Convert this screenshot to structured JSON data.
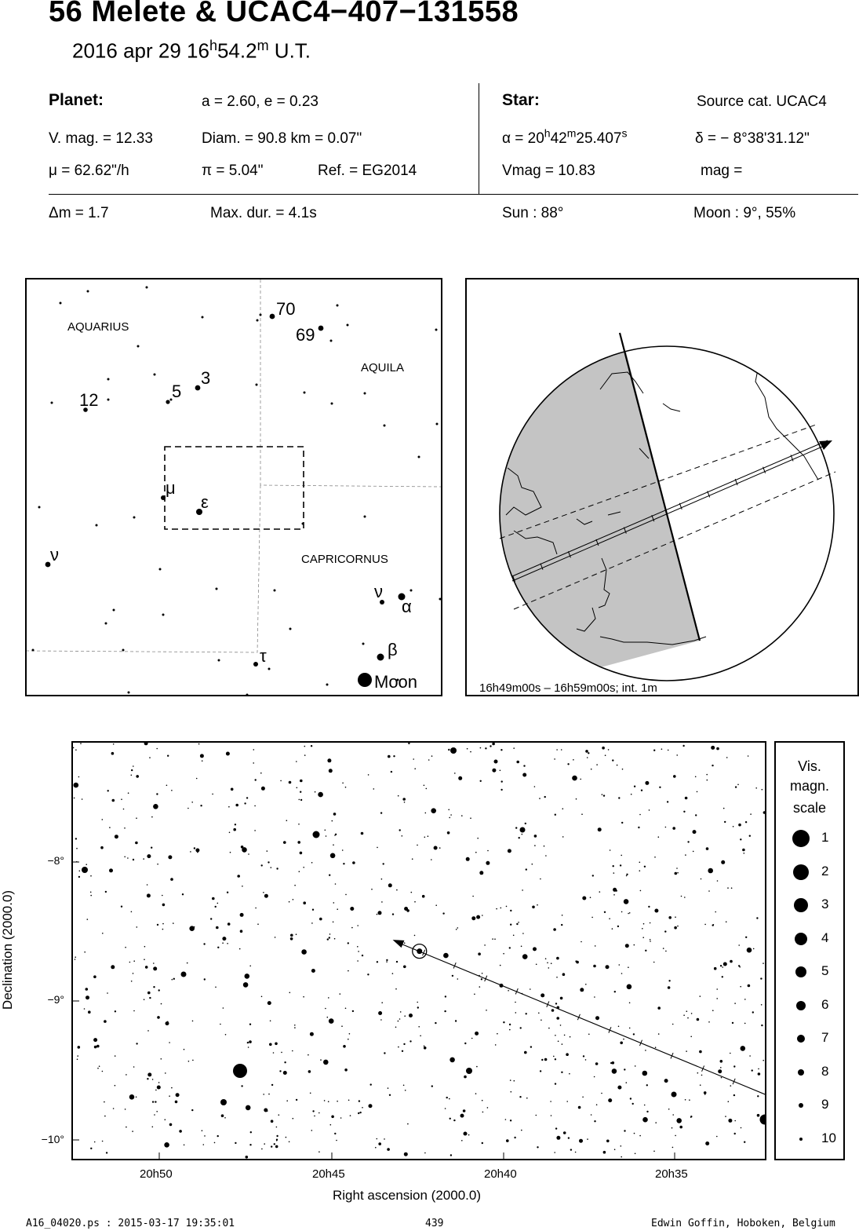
{
  "header": {
    "title": "56 Melete  &  UCAC4−407−131558",
    "date": "2016 apr 29  16",
    "hour_unit": "h",
    "minutes": "54.2",
    "min_unit": "m",
    "ut": " U.T."
  },
  "planet": {
    "heading": "Planet:",
    "orbit": "a = 2.60, e = 0.23",
    "vmag": "V. mag. = 12.33",
    "diam": "Diam. = 90.8 km = 0.07\"",
    "mu": "μ =  62.62\"/h",
    "pi": "π =  5.04\"",
    "ref": "Ref. = EG2014"
  },
  "star": {
    "heading": "Star:",
    "source": "Source cat.  UCAC4",
    "ra_prefix": "α = 20",
    "ra_h": "h",
    "ra_min": "42",
    "ra_m": "m",
    "ra_sec": "25.407",
    "ra_s": "s",
    "dec": "δ = − 8°38'31.12\"",
    "vmag": "Vmag = 10.83",
    "mag": "mag ="
  },
  "event": {
    "dm": "Δm = 1.7",
    "maxdur": "Max. dur. = 4.1s",
    "sun": "Sun :  88°",
    "moon": "Moon :   9°, 55%"
  },
  "finder": {
    "labels": {
      "aquarius": "AQUARIUS",
      "aquila": "AQUILA",
      "capricornus": "CAPRICORNUS",
      "s70": "70",
      "s69": "69",
      "s3": "3",
      "s5": "5",
      "s12": "12",
      "mu": "μ",
      "eps": "ε",
      "nu1": "ν",
      "nu2": "ν",
      "alpha": "α",
      "beta": "β",
      "tau": "τ",
      "moon": "Moon"
    }
  },
  "globe": {
    "caption": "16h49m00s – 16h59m00s; int.  1m"
  },
  "chart_data": {
    "type": "scatter",
    "xlabel": "Right ascension (2000.0)",
    "ylabel": "Declination (2000.0)",
    "x_ticks": [
      "20h50",
      "20h45",
      "20h40",
      "20h35"
    ],
    "y_ticks": [
      "−8°",
      "−9°",
      "−10°"
    ],
    "target_ra_h": 20.7071,
    "target_dec": -8.642,
    "path": {
      "from_ra_h": 20.5395,
      "from_dec": -9.672,
      "to_ra_h": 20.7201,
      "to_dec": -8.56
    }
  },
  "scale": {
    "title1": "Vis.",
    "title2": "magn.",
    "title3": "scale",
    "mags": [
      "1",
      "2",
      "3",
      "4",
      "5",
      "6",
      "7",
      "8",
      "9",
      "10"
    ]
  },
  "footer": {
    "left": "A16_04020.ps : 2015-03-17 19:35:01",
    "center": "439",
    "right": "Edwin Goffin, Hoboken, Belgium"
  }
}
